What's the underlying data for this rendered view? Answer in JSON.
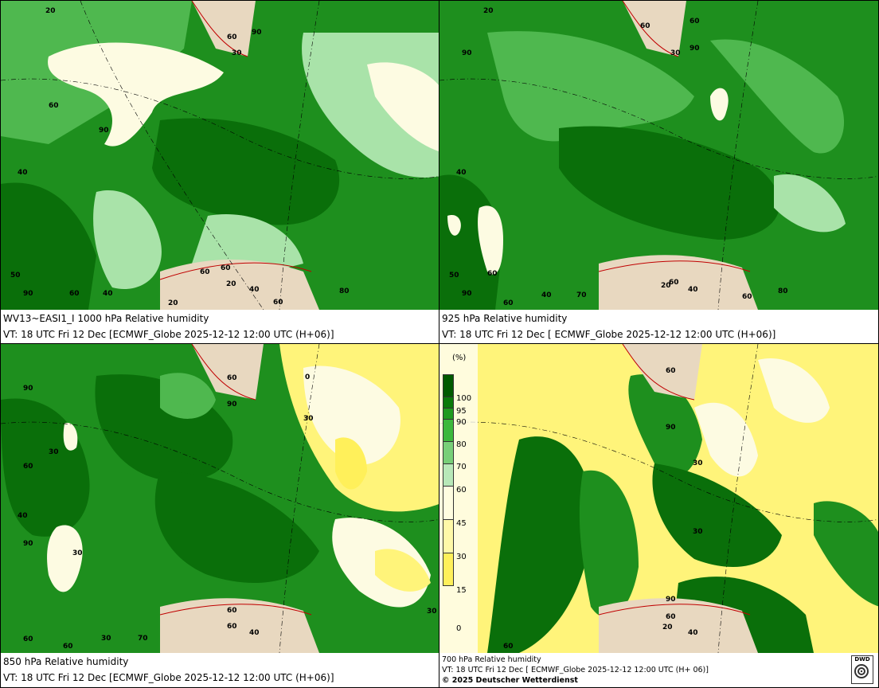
{
  "panels": [
    {
      "id": "p1000",
      "caption_line1": "WV13~EASI1_I 1000 hPa Relative humidity",
      "caption_line2": "VT: 18 UTC Fri  12 Dec [ECMWF_Globe 2025-12-12 12:00 UTC  (H+06)]",
      "contour_labels": [
        "20",
        "60",
        "90",
        "30",
        "60",
        "90",
        "40",
        "50",
        "90",
        "60",
        "60",
        "20",
        "40",
        "20",
        "60",
        "40",
        "80",
        "60"
      ]
    },
    {
      "id": "p925",
      "caption_line1": "925 hPa Relative humidity",
      "caption_line2": "VT: 18 UTC Fri  12 Dec [ ECMWF_Globe 2025-12-12 12:00 UTC  (H+06)]",
      "contour_labels": [
        "20",
        "90",
        "60",
        "30",
        "60",
        "90",
        "40",
        "50",
        "90",
        "60",
        "60",
        "20",
        "40",
        "70",
        "60",
        "40",
        "80",
        "60"
      ]
    },
    {
      "id": "p850",
      "caption_line1": "850 hPa  Relative humidity",
      "caption_line2": "VT: 18 UTC Fri  12 Dec [ECMWF_Globe 2025-12-12 12:00 UTC (H+06)]",
      "contour_labels": [
        "90",
        "60",
        "90",
        "0",
        "30",
        "30",
        "60",
        "40",
        "90",
        "30",
        "60",
        "60",
        "30",
        "70",
        "60",
        "60",
        "40",
        "30"
      ]
    },
    {
      "id": "p700",
      "caption_line1": "700 hPa Relative humidity",
      "caption_line2": "VT: 18 UTC Fri  12 Dec [ ECMWF_Globe 2025-12-12 12:00 UTC  (H+ 06)]",
      "caption_line3": "© 2025 Deutscher Wetterdienst",
      "contour_labels": [
        "60",
        "90",
        "30",
        "30",
        "60",
        "90",
        "20",
        "40",
        "60"
      ]
    }
  ],
  "legend": {
    "unit": "(%)",
    "levels": [
      "100",
      "95",
      "90",
      "80",
      "70",
      "60",
      "45",
      "30",
      "15",
      "0"
    ],
    "colors": [
      "#005a00",
      "#0a7a0a",
      "#1f9a1f",
      "#3cb83c",
      "#78cf78",
      "#b8e8b8",
      "#fffde0",
      "#fff9a8",
      "#fff05a",
      "#f2e530"
    ]
  },
  "logo_text": "DWD",
  "colors": {
    "rh_very_high": "#0a6f0a",
    "rh_high": "#1e8f1e",
    "rh_mid": "#4fb84f",
    "rh_low_green": "#a9e3a9",
    "rh_pale": "#fdfbe2",
    "rh_dry": "#fff47a",
    "coast": "#c00000",
    "land_hatch": "#c9a98a"
  }
}
